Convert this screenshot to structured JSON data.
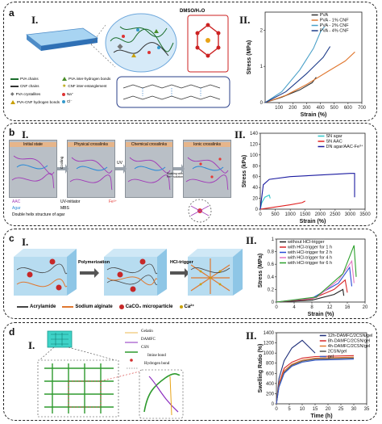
{
  "panels": {
    "a": {
      "letter": "a",
      "left_label": "I.",
      "right_label": "II.",
      "bubble_label": "DMSO/H₂O",
      "legend": [
        {
          "text": "PVA chains",
          "color": "#1b6e2c",
          "icon": "wave-icon"
        },
        {
          "text": "PVA inter-hydrogen bonds",
          "color": "#4a8f2a",
          "icon": "triangle-icon"
        },
        {
          "text": "CNF chains",
          "color": "#333333",
          "icon": "wave-icon"
        },
        {
          "text": "CNF inter-entanglement",
          "color": "#b5a200",
          "icon": "star-icon"
        },
        {
          "text": "PVA crystallites",
          "color": "#777777",
          "icon": "diamond-icon"
        },
        {
          "text": "Na⁺",
          "color": "#d33",
          "icon": "dot-icon"
        },
        {
          "text": "PVA-CNF hydrogen bonds",
          "color": "#c9a000",
          "icon": "triangle-icon"
        },
        {
          "text": "Cl⁻",
          "color": "#39c",
          "icon": "dot-icon"
        }
      ]
    },
    "b": {
      "letter": "b",
      "left_label": "I.",
      "right_label": "II.",
      "stages": [
        "Initial state",
        "Physical crosslinks",
        "Chemical crosslinks",
        "Ionic crosslinks"
      ],
      "arrows": [
        "Cooling",
        "UV",
        "Soaking with Fe³⁺ solution"
      ],
      "legend": [
        "AAC",
        "UV-initiator",
        "Fe³⁺",
        "Agar",
        "MBS",
        "Double helix structure of agar"
      ]
    },
    "c": {
      "letter": "c",
      "left_label": "I.",
      "right_label": "II.",
      "arrows": [
        "Polymerization",
        "HCl-trigger"
      ],
      "legend": [
        "Acrylamide",
        "Sodium alginate",
        "CaCO₃ microparticle",
        "Ca²⁺"
      ]
    },
    "d": {
      "letter": "d",
      "left_label": "I.",
      "right_label": "II.",
      "legend": [
        "Gelatin",
        "DAMFC",
        "CSN",
        "Imine bond",
        "Hydrogen bond"
      ]
    }
  },
  "chart_data": [
    {
      "type": "line",
      "panel": "a.II",
      "xlabel": "Strain (%)",
      "ylabel": "Stress (MPa)",
      "xlim": [
        0,
        700
      ],
      "ylim": [
        0,
        2.5
      ],
      "xticks": [
        100,
        200,
        300,
        400,
        500,
        600,
        700
      ],
      "yticks": [
        0,
        1,
        2
      ],
      "series": [
        {
          "name": "PVA",
          "color": "#333333",
          "points": [
            [
              0,
              0
            ],
            [
              120,
              0.15
            ],
            [
              250,
              0.35
            ],
            [
              340,
              0.55
            ],
            [
              370,
              0.7
            ]
          ]
        },
        {
          "name": "PVA - 1% CNF",
          "color": "#e07830",
          "points": [
            [
              0,
              0
            ],
            [
              150,
              0.2
            ],
            [
              300,
              0.5
            ],
            [
              450,
              0.85
            ],
            [
              580,
              1.15
            ],
            [
              650,
              1.4
            ]
          ]
        },
        {
          "name": "PVA - 2% CNF",
          "color": "#4aa0c8",
          "points": [
            [
              0,
              0
            ],
            [
              120,
              0.3
            ],
            [
              250,
              0.9
            ],
            [
              350,
              1.5
            ],
            [
              400,
              1.95
            ],
            [
              430,
              2.1
            ]
          ]
        },
        {
          "name": "PVA - 4% CNF",
          "color": "#1f3d8a",
          "points": [
            [
              0,
              0
            ],
            [
              150,
              0.3
            ],
            [
              300,
              0.8
            ],
            [
              420,
              1.25
            ],
            [
              470,
              1.55
            ]
          ]
        }
      ]
    },
    {
      "type": "line",
      "panel": "b.II",
      "xlabel": "Strain (%)",
      "ylabel": "Stress (kPa)",
      "xlim": [
        0,
        3500
      ],
      "ylim": [
        0,
        140
      ],
      "xticks": [
        0,
        500,
        1000,
        1500,
        2000,
        2500,
        3000,
        3500
      ],
      "yticks": [
        0,
        20,
        40,
        60,
        80,
        100,
        120,
        140
      ],
      "series": [
        {
          "name": "SN agar",
          "color": "#2ec7c9",
          "points": [
            [
              0,
              0
            ],
            [
              50,
              12
            ],
            [
              150,
              22
            ],
            [
              300,
              26
            ],
            [
              330,
              20
            ]
          ]
        },
        {
          "name": "SN AAC",
          "color": "#e02020",
          "points": [
            [
              0,
              0
            ],
            [
              500,
              4
            ],
            [
              1000,
              8
            ],
            [
              1400,
              12
            ],
            [
              1500,
              15
            ]
          ]
        },
        {
          "name": "DN agar/AAC-Fe³⁺",
          "color": "#1a1aa0",
          "points": [
            [
              0,
              0
            ],
            [
              100,
              45
            ],
            [
              300,
              55
            ],
            [
              1000,
              60
            ],
            [
              2000,
              63
            ],
            [
              3000,
              66
            ],
            [
              3150,
              66
            ],
            [
              3150,
              22
            ]
          ]
        }
      ]
    },
    {
      "type": "line",
      "panel": "c.II",
      "xlabel": "Strain (%)",
      "ylabel": "Stress (MPa)",
      "xlim": [
        0,
        20
      ],
      "ylim": [
        0,
        1.0
      ],
      "xticks": [
        0,
        4,
        8,
        12,
        16,
        20
      ],
      "yticks": [
        0.0,
        0.2,
        0.4,
        0.6,
        0.8,
        1.0
      ],
      "series": [
        {
          "name": "without HCl-trigger",
          "color": "#222222",
          "points": [
            [
              0,
              0
            ],
            [
              8,
              0.03
            ],
            [
              13,
              0.12
            ],
            [
              15,
              0.2
            ],
            [
              15.2,
              0.1
            ]
          ]
        },
        {
          "name": "with HCl-trigger for 1 h",
          "color": "#d62728",
          "points": [
            [
              0,
              0
            ],
            [
              8,
              0.05
            ],
            [
              13,
              0.2
            ],
            [
              15.5,
              0.35
            ],
            [
              16,
              0.15
            ]
          ]
        },
        {
          "name": "with HCl-trigger for 2 h",
          "color": "#2a4bd7",
          "points": [
            [
              0,
              0
            ],
            [
              8,
              0.06
            ],
            [
              14,
              0.3
            ],
            [
              16.5,
              0.55
            ],
            [
              17,
              0.25
            ]
          ]
        },
        {
          "name": "with HCl-trigger for 4 h",
          "color": "#e377c2",
          "points": [
            [
              0,
              0
            ],
            [
              9,
              0.07
            ],
            [
              14,
              0.35
            ],
            [
              17,
              0.65
            ],
            [
              17.5,
              0.3
            ]
          ]
        },
        {
          "name": "with HCl-trigger for 6 h",
          "color": "#2ca02c",
          "points": [
            [
              0,
              0
            ],
            [
              9,
              0.08
            ],
            [
              15,
              0.45
            ],
            [
              17.5,
              0.9
            ],
            [
              18,
              0.4
            ]
          ]
        }
      ]
    },
    {
      "type": "line",
      "panel": "d.II",
      "xlabel": "Time (h)",
      "ylabel": "Swelling Ratio (%)",
      "xlim": [
        0,
        35
      ],
      "ylim": [
        0,
        1400
      ],
      "xticks": [
        0,
        5,
        10,
        15,
        20,
        25,
        30,
        35
      ],
      "yticks": [
        0,
        200,
        400,
        600,
        800,
        1000,
        1200,
        1400
      ],
      "series": [
        {
          "name": "12h-DAMFC/2CSN/gel",
          "color": "#1f2f7a",
          "points": [
            [
              0,
              0
            ],
            [
              1,
              500
            ],
            [
              3,
              850
            ],
            [
              6,
              1100
            ],
            [
              10,
              1250
            ],
            [
              15,
              1000
            ]
          ]
        },
        {
          "name": "8h-DAMFC/2CSN/gel",
          "color": "#d62728",
          "points": [
            [
              0,
              0
            ],
            [
              1,
              400
            ],
            [
              3,
              700
            ],
            [
              6,
              820
            ],
            [
              10,
              900
            ],
            [
              15,
              930
            ],
            [
              30,
              950
            ]
          ]
        },
        {
          "name": "4h-DAMFC/2CSN/gel",
          "color": "#e07830",
          "points": [
            [
              0,
              0
            ],
            [
              1,
              380
            ],
            [
              3,
              650
            ],
            [
              6,
              780
            ],
            [
              10,
              860
            ],
            [
              15,
              900
            ],
            [
              30,
              920
            ]
          ]
        },
        {
          "name": "2CSN/gel",
          "color": "#555555",
          "points": [
            [
              0,
              0
            ],
            [
              1,
              350
            ],
            [
              3,
              620
            ],
            [
              6,
              760
            ],
            [
              10,
              840
            ],
            [
              15,
              880
            ],
            [
              30,
              900
            ]
          ]
        },
        {
          "name": "gel",
          "color": "#3a5fcd",
          "points": [
            [
              0,
              0
            ],
            [
              1,
              330
            ],
            [
              3,
              600
            ],
            [
              6,
              740
            ],
            [
              10,
              820
            ],
            [
              15,
              860
            ],
            [
              30,
              880
            ]
          ]
        }
      ]
    }
  ]
}
